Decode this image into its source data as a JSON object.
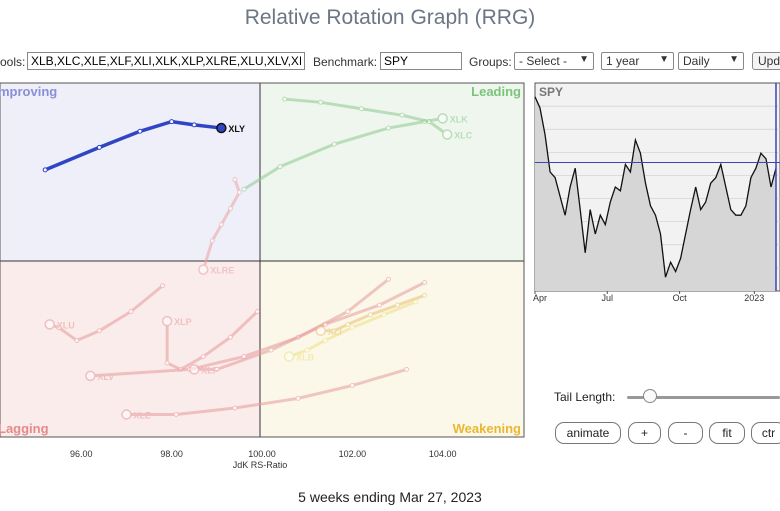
{
  "page": {
    "title": "Relative Rotation Graph (RRG)",
    "footer": "5 weeks ending Mar 27, 2023"
  },
  "toolbar": {
    "symbols_label": "ools:",
    "symbols_value": "XLB,XLC,XLE,XLF,XLI,XLK,XLP,XLRE,XLU,XLV,XL",
    "benchmark_label": "Benchmark:",
    "benchmark_value": "SPY",
    "groups_label": "Groups:",
    "groups_value": "- Select -",
    "period_value": "1 year",
    "frequency_value": "Daily",
    "update_label": "Upd"
  },
  "controls": {
    "tail_length_label": "Tail Length:",
    "tail_length_value": 0.15,
    "animate_label": "animate",
    "plus_label": "+",
    "minus_label": "-",
    "fit_label": "fit",
    "ctr_label": "ctr"
  },
  "colors": {
    "improving_bg": "#efeff9",
    "leading_bg": "#eef6ee",
    "lagging_bg": "#fbecec",
    "weakening_bg": "#fbf8ea",
    "improving_text": "#8a8fd6",
    "leading_text": "#7cc47c",
    "lagging_text": "#e58a8a",
    "weakening_text": "#e8b830",
    "xly": "#2f45c4",
    "xlk": "#8fc98f",
    "xlc": "#8fc98f",
    "xlre": "#eba3a3",
    "xlu": "#e79c9c",
    "xlp": "#e79c9c",
    "xlv": "#e79c9c",
    "xlf": "#e79c9c",
    "xle": "#e79c9c",
    "xli": "#e8c070",
    "xlb": "#f0e080"
  },
  "chart_data": [
    {
      "type": "scatter",
      "xlabel": "JdK RS-Ratio",
      "xlim": [
        94.2,
        105.8
      ],
      "ylim": [
        94.5,
        105.5
      ],
      "x_ticks": [
        96,
        98,
        100,
        102,
        104
      ],
      "x_tick_labels": [
        "96.00",
        "98.00",
        "100.00",
        "102.00",
        "104.00"
      ],
      "quadrants": {
        "improving": "mproving",
        "leading": "Leading",
        "lagging": "Lagging",
        "weakening": "Weakening"
      },
      "series": [
        {
          "name": "XLY",
          "color_key": "xly",
          "highlight": true,
          "points": [
            [
              95.2,
              102.8
            ],
            [
              96.4,
              103.5
            ],
            [
              97.3,
              104.0
            ],
            [
              98.0,
              104.3
            ],
            [
              98.5,
              104.2
            ],
            [
              99.1,
              104.1
            ]
          ]
        },
        {
          "name": "XLK",
          "color_key": "xlk",
          "points": [
            [
              99.6,
              102.2
            ],
            [
              100.4,
              102.9
            ],
            [
              101.6,
              103.6
            ],
            [
              102.8,
              104.1
            ],
            [
              103.6,
              104.3
            ],
            [
              104.0,
              104.4
            ]
          ]
        },
        {
          "name": "XLC",
          "color_key": "xlc",
          "points": [
            [
              100.5,
              105.0
            ],
            [
              101.3,
              104.9
            ],
            [
              102.2,
              104.7
            ],
            [
              103.1,
              104.5
            ],
            [
              103.7,
              104.3
            ],
            [
              104.1,
              103.9
            ]
          ]
        },
        {
          "name": "XLRE",
          "color_key": "xlre",
          "points": [
            [
              99.4,
              102.5
            ],
            [
              99.5,
              102.1
            ],
            [
              99.3,
              101.6
            ],
            [
              99.1,
              101.1
            ],
            [
              98.9,
              100.6
            ],
            [
              98.7,
              99.7
            ]
          ]
        },
        {
          "name": "XLU",
          "color_key": "xlu",
          "points": [
            [
              97.8,
              99.2
            ],
            [
              97.1,
              98.4
            ],
            [
              96.4,
              97.8
            ],
            [
              95.9,
              97.5
            ],
            [
              95.5,
              97.9
            ],
            [
              95.3,
              98.0
            ]
          ]
        },
        {
          "name": "XLP",
          "color_key": "xlp",
          "points": [
            [
              99.9,
              98.4
            ],
            [
              99.3,
              97.6
            ],
            [
              98.7,
              97.0
            ],
            [
              98.2,
              96.6
            ],
            [
              97.9,
              96.8
            ],
            [
              97.9,
              98.1
            ]
          ]
        },
        {
          "name": "XLV",
          "color_key": "xlv",
          "points": [
            [
              102.8,
              99.4
            ],
            [
              101.9,
              98.4
            ],
            [
              100.8,
              97.6
            ],
            [
              99.6,
              97.0
            ],
            [
              98.4,
              96.6
            ],
            [
              96.2,
              96.4
            ]
          ]
        },
        {
          "name": "XLF",
          "color_key": "xlf",
          "points": [
            [
              103.6,
              99.3
            ],
            [
              102.6,
              98.6
            ],
            [
              101.4,
              98.0
            ],
            [
              100.2,
              97.2
            ],
            [
              99.0,
              96.6
            ],
            [
              98.5,
              96.6
            ]
          ]
        },
        {
          "name": "XLE",
          "color_key": "xle",
          "points": [
            [
              103.2,
              96.6
            ],
            [
              102.0,
              96.1
            ],
            [
              100.8,
              95.7
            ],
            [
              99.4,
              95.4
            ],
            [
              98.1,
              95.2
            ],
            [
              97.0,
              95.2
            ]
          ]
        },
        {
          "name": "XLI",
          "color_key": "xli",
          "points": [
            [
              103.6,
              98.9
            ],
            [
              103.0,
              98.6
            ],
            [
              102.4,
              98.3
            ],
            [
              101.9,
              98.0
            ],
            [
              101.6,
              97.8
            ],
            [
              101.3,
              97.8
            ]
          ]
        },
        {
          "name": "XLB",
          "color_key": "xlb",
          "points": [
            [
              103.4,
              98.7
            ],
            [
              102.7,
              98.3
            ],
            [
              102.0,
              97.9
            ],
            [
              101.4,
              97.5
            ],
            [
              101.0,
              97.2
            ],
            [
              100.6,
              97.0
            ]
          ]
        }
      ]
    },
    {
      "type": "area",
      "title": "SPY",
      "x_tick_labels": [
        "Apr",
        "Jul",
        "Oct",
        "2023"
      ],
      "x_tick_positions": [
        0.0,
        0.3,
        0.6,
        0.91
      ],
      "reference_level": 0.63,
      "values": [
        0.98,
        0.92,
        0.78,
        0.58,
        0.55,
        0.45,
        0.35,
        0.5,
        0.6,
        0.38,
        0.15,
        0.38,
        0.25,
        0.35,
        0.3,
        0.42,
        0.5,
        0.48,
        0.62,
        0.58,
        0.75,
        0.68,
        0.52,
        0.4,
        0.35,
        0.25,
        0.02,
        0.1,
        0.05,
        0.12,
        0.25,
        0.38,
        0.5,
        0.38,
        0.42,
        0.52,
        0.55,
        0.62,
        0.5,
        0.38,
        0.35,
        0.35,
        0.4,
        0.55,
        0.6,
        0.68,
        0.65,
        0.5,
        0.6
      ]
    }
  ]
}
